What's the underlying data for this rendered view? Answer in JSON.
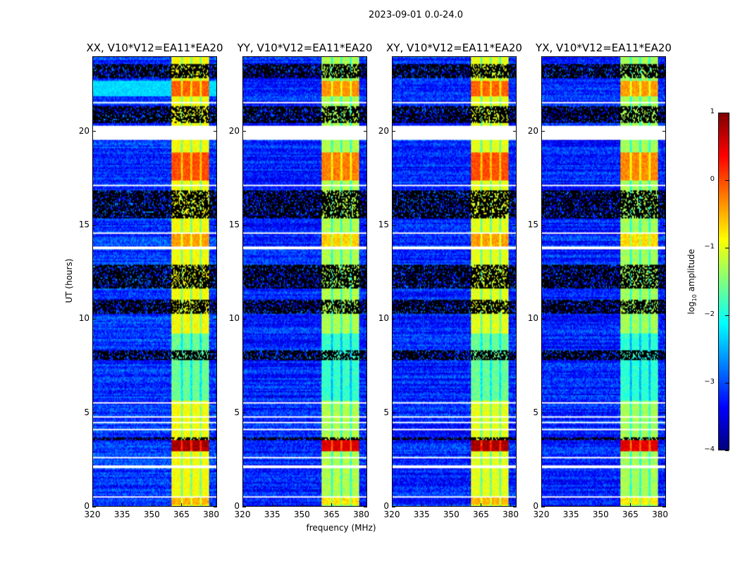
{
  "chart_data": {
    "type": "heatmap",
    "title": "2023-09-01 0.0-24.0",
    "xlabel": "frequency (MHz)",
    "ylabel": "UT (hours)",
    "xlim": [
      320,
      383
    ],
    "ylim": [
      0,
      24
    ],
    "xticks": [
      "320",
      "335",
      "350",
      "365",
      "380"
    ],
    "xtick_values": [
      320,
      335,
      350,
      365,
      380
    ],
    "yticks": [
      "0",
      "5",
      "10",
      "15",
      "20"
    ],
    "ytick_values": [
      0,
      5,
      10,
      15,
      20
    ],
    "panels": [
      {
        "title": "XX, V10*V12=EA11*EA20",
        "band_offset": 0.0,
        "bg_level": -3.1
      },
      {
        "title": "YY, V10*V12=EA11*EA20",
        "band_offset": -0.25,
        "bg_level": -3.2
      },
      {
        "title": "XY, V10*V12=EA11*EA20",
        "band_offset": 0.0,
        "bg_level": -3.2
      },
      {
        "title": "YX, V10*V12=EA11*EA20",
        "band_offset": -0.3,
        "bg_level": -3.2
      }
    ],
    "rfi_band_mhz": [
      360,
      379
    ],
    "rfi_subband_gaps_mhz": [
      365.3,
      370.3,
      375.0
    ],
    "rfi_band_level": -1.0,
    "rfi_events": [
      {
        "hours": [
          2.9,
          3.5
        ],
        "level": 0.8
      },
      {
        "hours": [
          17.4,
          18.9
        ],
        "level": 0.0
      },
      {
        "hours": [
          21.9,
          22.7
        ],
        "level": -0.1
      },
      {
        "hours": [
          13.9,
          14.6
        ],
        "level": -0.4
      },
      {
        "hours": [
          0.1,
          0.5
        ],
        "level": -0.5
      },
      {
        "hours": [
          5.6,
          9.2
        ],
        "level": -1.6
      }
    ],
    "flagged_hours": [
      [
        0.45,
        0.55
      ],
      [
        2.05,
        2.15
      ],
      [
        2.55,
        2.6
      ],
      [
        4.05,
        4.15
      ],
      [
        4.45,
        4.5
      ],
      [
        4.75,
        4.8
      ],
      [
        5.45,
        5.55
      ],
      [
        9.8,
        9.85
      ],
      [
        13.75,
        13.85
      ],
      [
        14.55,
        14.6
      ],
      [
        15.05,
        15.1
      ],
      [
        17.1,
        17.15
      ],
      [
        19.25,
        19.3
      ],
      [
        19.55,
        20.3
      ],
      [
        21.55,
        21.6
      ],
      [
        22.25,
        22.3
      ],
      [
        23.15,
        23.2
      ]
    ],
    "gap_hours": [
      [
        3.55,
        3.7
      ],
      [
        7.8,
        8.3
      ],
      [
        10.3,
        11.0
      ],
      [
        11.6,
        12.9
      ],
      [
        15.4,
        16.9
      ],
      [
        20.5,
        21.4
      ],
      [
        22.9,
        23.6
      ]
    ],
    "colorbar": {
      "label": "log",
      "label_sub": "10",
      "label_rest": " amplitude",
      "colormap": "jet",
      "range": [
        -4,
        1
      ],
      "ticks": [
        "−4",
        "−3",
        "−2",
        "−1",
        "0",
        "1"
      ],
      "tick_values": [
        -4,
        -3,
        -2,
        -1,
        0,
        1
      ]
    }
  }
}
